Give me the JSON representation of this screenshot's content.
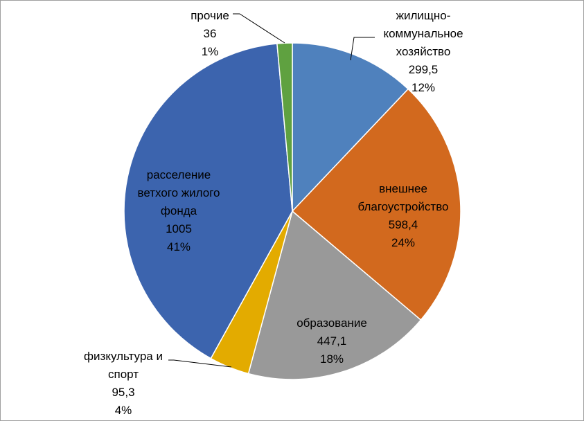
{
  "chart_data": {
    "type": "pie",
    "title": "",
    "start_angle_deg": 0,
    "direction": "clockwise",
    "legend": "none",
    "slices": [
      {
        "name": "жилищно-коммунальное хозяйство",
        "label_lines": [
          "жилищно-",
          "коммунальное",
          "хозяйство"
        ],
        "value": 299.5,
        "value_label": "299,5",
        "percent_label": "12%",
        "color": "#4f81bd"
      },
      {
        "name": "внешнее благоустройство",
        "label_lines": [
          "внешнее",
          "благоустройство"
        ],
        "value": 598.4,
        "value_label": "598,4",
        "percent_label": "24%",
        "color": "#d2691e"
      },
      {
        "name": "образование",
        "label_lines": [
          "образование"
        ],
        "value": 447.1,
        "value_label": "447,1",
        "percent_label": "18%",
        "color": "#999999"
      },
      {
        "name": "физкультура и спорт",
        "label_lines": [
          "физкультура и",
          "спорт"
        ],
        "value": 95.3,
        "value_label": "95,3",
        "percent_label": "4%",
        "color": "#e3ab00"
      },
      {
        "name": "расселение ветхого жилого фонда",
        "label_lines": [
          "расселение",
          "ветхого жилого",
          "фонда"
        ],
        "value": 1005,
        "value_label": "1005",
        "percent_label": "41%",
        "color": "#3c64ae"
      },
      {
        "name": "прочие",
        "label_lines": [
          "прочие"
        ],
        "value": 36,
        "value_label": "36",
        "percent_label": "1%",
        "color": "#5fa140"
      }
    ]
  }
}
